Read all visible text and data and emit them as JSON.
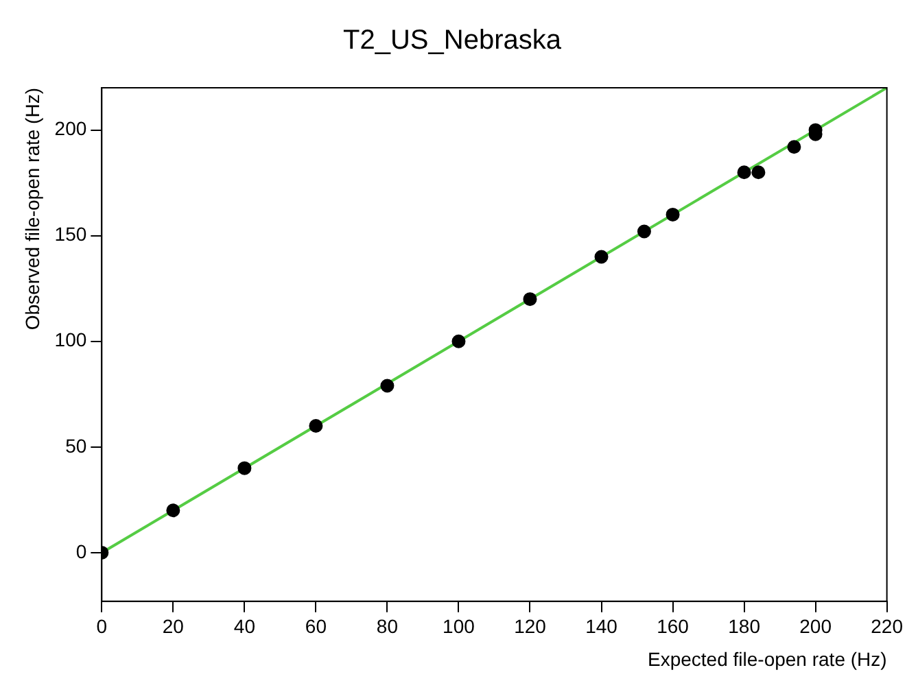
{
  "chart_data": {
    "type": "scatter",
    "title": "T2_US_Nebraska",
    "xlabel": "Expected file-open rate (Hz)",
    "ylabel": "Observed file-open rate (Hz)",
    "xlim": [
      0,
      220
    ],
    "ylim": [
      -23,
      220
    ],
    "xticks": [
      0,
      20,
      40,
      60,
      80,
      100,
      120,
      140,
      160,
      180,
      200,
      220
    ],
    "yticks": [
      0,
      50,
      100,
      150,
      200
    ],
    "grid": false,
    "legend": false,
    "marker": "circle",
    "series": [
      {
        "color": "#000000",
        "x": [
          0,
          20,
          40,
          60,
          80,
          100,
          120,
          140,
          152,
          160,
          180,
          184,
          194,
          200,
          200
        ],
        "values": [
          0,
          20,
          40,
          60,
          79,
          100,
          120,
          140,
          152,
          160,
          180,
          180,
          192,
          198,
          200
        ]
      },
      {
        "type": "line",
        "color": "#55cc44",
        "x": [
          0,
          220
        ],
        "values": [
          0,
          220
        ],
        "marker": "none",
        "line_style": "solid"
      }
    ]
  }
}
